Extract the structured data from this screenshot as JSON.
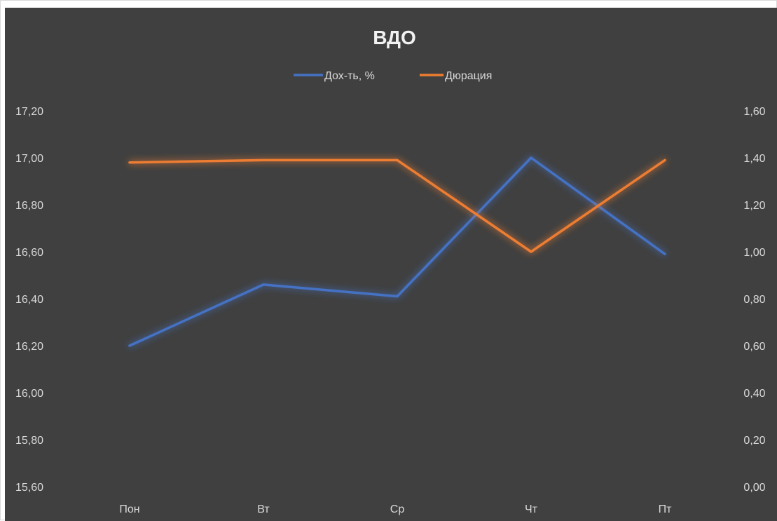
{
  "chart_data": {
    "type": "line",
    "title": "ВДО",
    "categories": [
      "Пон",
      "Вт",
      "Ср",
      "Чт",
      "Пт"
    ],
    "legend_position": "top",
    "grid": false,
    "y_left": {
      "ylim": [
        15.6,
        17.2
      ],
      "ticks": [
        "17,20",
        "17,00",
        "16,80",
        "16,60",
        "16,40",
        "16,20",
        "16,00",
        "15,80",
        "15,60"
      ]
    },
    "y_right": {
      "ylim": [
        0.0,
        1.6
      ],
      "ticks": [
        "1,60",
        "1,40",
        "1,20",
        "1,00",
        "0,80",
        "0,60",
        "0,40",
        "0,20",
        "0,00"
      ]
    },
    "series": [
      {
        "name": "Дох-ть, %",
        "axis": "left",
        "color": "#4472c4",
        "values": [
          16.2,
          16.46,
          16.41,
          17.0,
          16.59
        ]
      },
      {
        "name": "Дюрация",
        "axis": "right",
        "color": "#ed7d31",
        "values": [
          1.38,
          1.39,
          1.39,
          1.0,
          1.39
        ]
      }
    ]
  }
}
